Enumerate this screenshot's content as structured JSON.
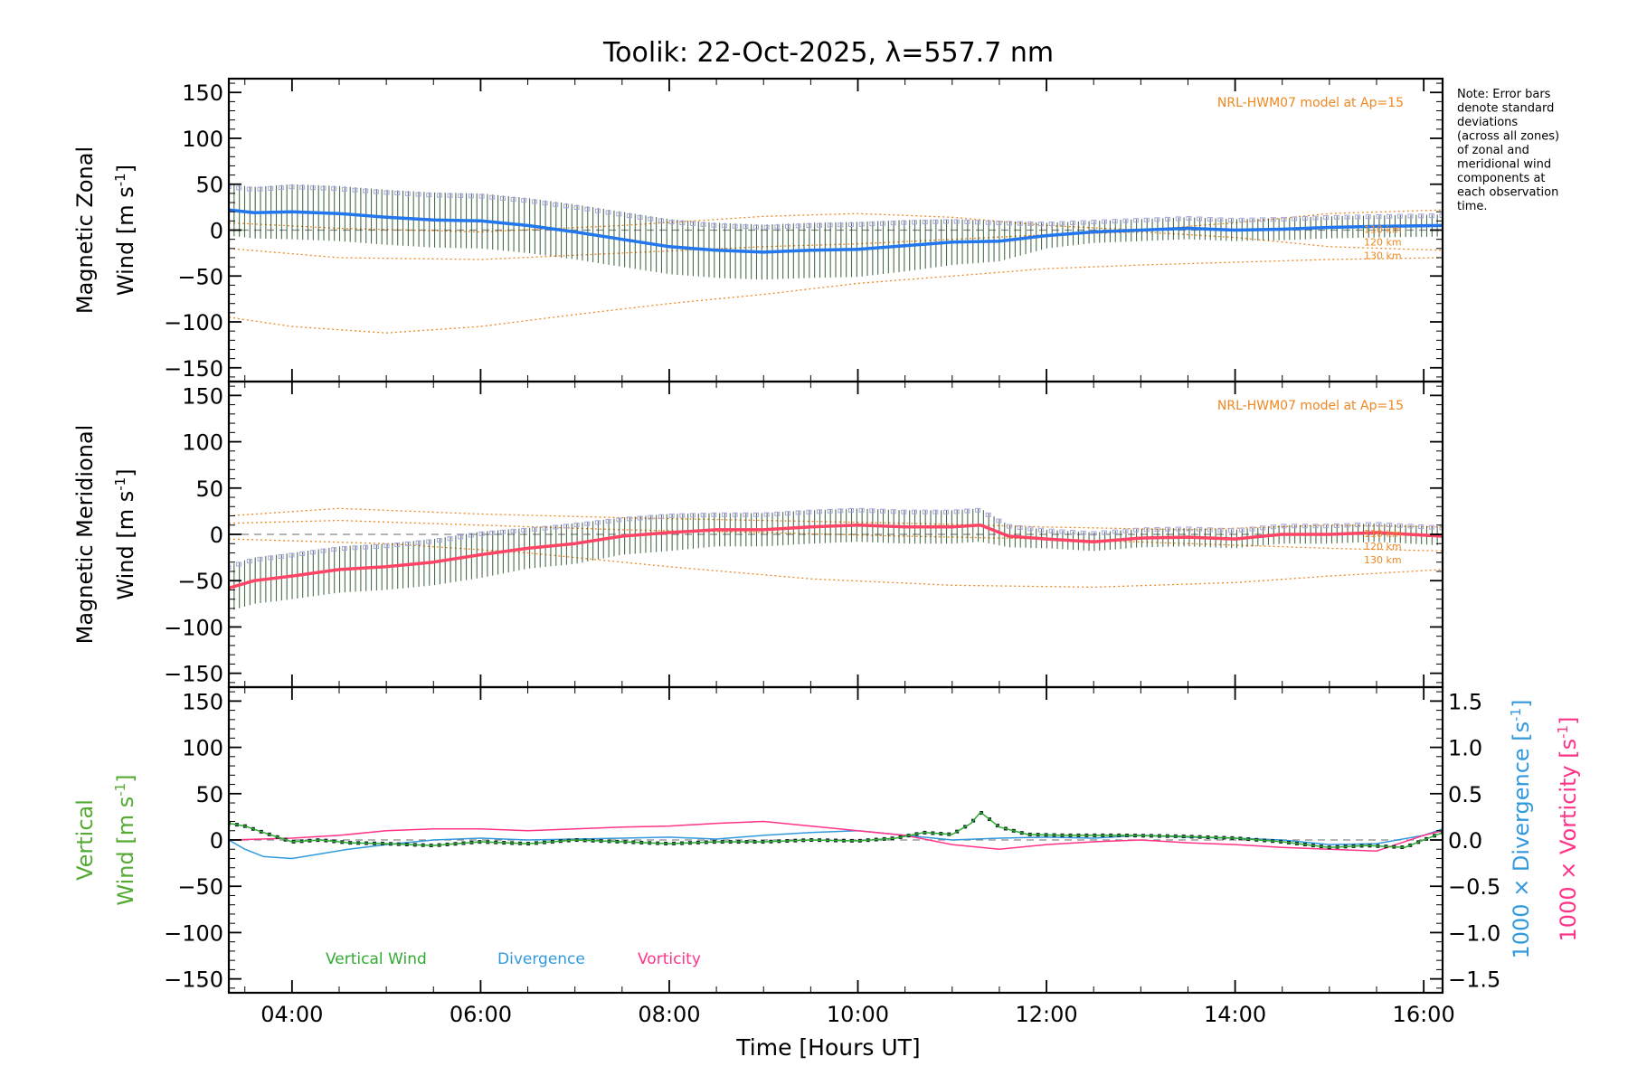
{
  "chart_data": {
    "type": "line",
    "title": "Toolik: 22-Oct-2025, λ=557.7 nm",
    "xlabel": "Time [Hours UT]",
    "xlim": [
      3.33,
      16.2
    ],
    "x_ticks": [
      {
        "value": 4,
        "label": "04:00"
      },
      {
        "value": 6,
        "label": "06:00"
      },
      {
        "value": 8,
        "label": "08:00"
      },
      {
        "value": 10,
        "label": "10:00"
      },
      {
        "value": 12,
        "label": "12:00"
      },
      {
        "value": 14,
        "label": "14:00"
      },
      {
        "value": 16,
        "label": "16:00"
      }
    ],
    "y_ticks": [
      {
        "value": 150,
        "label": "150"
      },
      {
        "value": 100,
        "label": "100"
      },
      {
        "value": 50,
        "label": "50"
      },
      {
        "value": 0,
        "label": "0"
      },
      {
        "value": -50,
        "label": "−50"
      },
      {
        "value": -100,
        "label": "−100"
      },
      {
        "value": -150,
        "label": "−150"
      }
    ],
    "right_y_ticks": [
      {
        "value": 1.5,
        "label": "1.5"
      },
      {
        "value": 1.0,
        "label": "1.0"
      },
      {
        "value": 0.5,
        "label": "0.5"
      },
      {
        "value": 0.0,
        "label": "0.0"
      },
      {
        "value": -0.5,
        "label": "−0.5"
      },
      {
        "value": -1.0,
        "label": "−1.0"
      },
      {
        "value": -1.5,
        "label": "−1.5"
      }
    ],
    "note_lines": [
      "Note: Error bars",
      "denote standard",
      "deviations",
      "(across all zones)",
      "of zonal and",
      "meridional wind",
      "components at",
      "each observation",
      "time."
    ],
    "panels": [
      {
        "id": "zonal",
        "ylabel_line1": "Magnetic Zonal",
        "ylabel_line2": "Wind [m s",
        "ylabel_sup": "-1",
        "ylabel_close": "]",
        "ylim": [
          -165,
          165
        ],
        "model_label": "NRL-HWM07 model at Ap=15",
        "alt_labels": [
          "110 km",
          "120 km",
          "130 km"
        ],
        "series": [
          {
            "name": "Magnetic Zonal Wind",
            "color": "#2277ee",
            "error_color": "#1a4a1a",
            "x": [
              3.33,
              3.6,
              4.0,
              4.5,
              5.0,
              5.5,
              6.0,
              6.5,
              7.0,
              7.5,
              8.0,
              8.5,
              9.0,
              9.5,
              10.0,
              10.5,
              11.0,
              11.5,
              12.0,
              12.5,
              13.0,
              13.5,
              14.0,
              14.5,
              15.0,
              15.5,
              16.2
            ],
            "y": [
              22,
              19,
              20,
              18,
              14,
              11,
              10,
              5,
              -2,
              -10,
              -18,
              -22,
              -24,
              -22,
              -21,
              -17,
              -13,
              -12,
              -6,
              -2,
              0,
              2,
              0,
              1,
              3,
              4,
              5
            ],
            "err": [
              28,
              28,
              30,
              30,
              30,
              30,
              30,
              30,
              30,
              30,
              30,
              30,
              30,
              30,
              30,
              28,
              25,
              22,
              14,
              12,
              12,
              12,
              12,
              12,
              12,
              12,
              12
            ]
          },
          {
            "name": "model 110 km",
            "color": "#ee8822",
            "x": [
              3.33,
              4.5,
              6.0,
              7.5,
              9.0,
              10.0,
              11.0,
              12.0,
              13.0,
              14.0,
              15.0,
              16.2
            ],
            "y": [
              8,
              2,
              -2,
              5,
              15,
              18,
              14,
              5,
              0,
              8,
              18,
              22
            ]
          },
          {
            "name": "model 120 km",
            "color": "#ee8822",
            "x": [
              3.33,
              4.5,
              6.0,
              7.5,
              9.0,
              10.0,
              11.0,
              12.0,
              13.0,
              14.0,
              15.0,
              16.2
            ],
            "y": [
              -20,
              -30,
              -32,
              -25,
              -18,
              -15,
              -10,
              -5,
              -2,
              -8,
              -18,
              -22
            ]
          },
          {
            "name": "model 130 km",
            "color": "#ee8822",
            "x": [
              3.33,
              4.0,
              5.0,
              6.0,
              7.0,
              8.0,
              9.0,
              10.0,
              11.0,
              12.0,
              13.0,
              14.0,
              15.0,
              16.2
            ],
            "y": [
              -95,
              -105,
              -112,
              -105,
              -92,
              -80,
              -70,
              -58,
              -50,
              -42,
              -38,
              -35,
              -32,
              -30
            ]
          }
        ]
      },
      {
        "id": "meridional",
        "ylabel_line1": "Magnetic Meridional",
        "ylabel_line2": "Wind [m s",
        "ylabel_sup": "-1",
        "ylabel_close": "]",
        "ylim": [
          -165,
          165
        ],
        "model_label": "NRL-HWM07 model at Ap=15",
        "alt_labels": [
          "110 km",
          "120 km",
          "130 km"
        ],
        "series": [
          {
            "name": "Magnetic Meridional Wind",
            "color": "#ff4466",
            "error_color": "#1a4a1a",
            "x": [
              3.33,
              3.6,
              4.0,
              4.5,
              5.0,
              5.5,
              6.0,
              6.5,
              7.0,
              7.5,
              8.0,
              8.5,
              9.0,
              9.5,
              10.0,
              10.5,
              11.0,
              11.3,
              11.6,
              12.0,
              12.5,
              13.0,
              13.5,
              14.0,
              14.5,
              15.0,
              15.5,
              16.2
            ],
            "y": [
              -58,
              -50,
              -45,
              -38,
              -35,
              -30,
              -22,
              -15,
              -10,
              -2,
              2,
              5,
              5,
              8,
              10,
              8,
              8,
              10,
              -2,
              -5,
              -8,
              -4,
              -3,
              -5,
              0,
              0,
              2,
              -2
            ],
            "err": [
              25,
              25,
              25,
              25,
              25,
              25,
              25,
              22,
              22,
              20,
              20,
              18,
              18,
              18,
              18,
              18,
              18,
              18,
              12,
              10,
              10,
              10,
              10,
              10,
              10,
              10,
              10,
              10
            ]
          },
          {
            "name": "model 110 km",
            "color": "#ee8822",
            "x": [
              3.33,
              4.5,
              6.0,
              7.5,
              9.0,
              10.5,
              12.0,
              13.5,
              15.0,
              16.2
            ],
            "y": [
              20,
              28,
              22,
              18,
              15,
              12,
              8,
              5,
              10,
              8
            ]
          },
          {
            "name": "model 120 km",
            "color": "#ee8822",
            "x": [
              3.33,
              4.5,
              6.0,
              7.5,
              9.0,
              10.5,
              12.0,
              13.5,
              15.0,
              16.2
            ],
            "y": [
              12,
              15,
              10,
              5,
              2,
              -2,
              -5,
              -10,
              -15,
              -18
            ]
          },
          {
            "name": "model 130 km",
            "color": "#ee8822",
            "x": [
              3.33,
              5.0,
              6.5,
              8.0,
              9.5,
              11.0,
              12.5,
              14.0,
              15.0,
              16.2
            ],
            "y": [
              -5,
              -10,
              -20,
              -35,
              -48,
              -55,
              -57,
              -52,
              -45,
              -38
            ]
          }
        ]
      },
      {
        "id": "vertical",
        "ylabel_line1": "Vertical",
        "ylabel_line2": "Wind [m s",
        "ylabel_sup": "-1",
        "ylabel_close": "]",
        "ylim": [
          -165,
          165
        ],
        "right_ylim": [
          -1.65,
          1.65
        ],
        "right_label_div": "1000 × Divergence [s",
        "right_label_vort": "1000 × Vorticity [s",
        "right_label_sup": "-1",
        "right_label_close": "]",
        "legend": [
          {
            "label": "Vertical Wind",
            "color": "#33aa33"
          },
          {
            "label": "Divergence",
            "color": "#3399dd"
          },
          {
            "label": "Vorticity",
            "color": "#ff3388"
          }
        ],
        "series": [
          {
            "name": "Vertical Wind",
            "color": "#33aa33",
            "axis": "left",
            "x": [
              3.33,
              3.5,
              3.7,
              4.0,
              4.3,
              4.6,
              5.0,
              5.5,
              6.0,
              6.5,
              7.0,
              7.5,
              8.0,
              8.5,
              9.0,
              9.5,
              10.0,
              10.4,
              10.7,
              11.0,
              11.2,
              11.3,
              11.5,
              11.8,
              12.2,
              12.8,
              13.4,
              14.0,
              14.5,
              15.0,
              15.4,
              15.8,
              16.2
            ],
            "y": [
              18,
              15,
              8,
              -2,
              0,
              -3,
              -4,
              -6,
              -2,
              -4,
              0,
              -2,
              -4,
              -2,
              -2,
              0,
              -1,
              2,
              8,
              6,
              18,
              30,
              14,
              6,
              5,
              5,
              4,
              2,
              -2,
              -8,
              -6,
              -8,
              8
            ],
            "err": [
              10,
              10,
              10,
              10,
              10,
              10,
              10,
              10,
              10,
              10,
              10,
              10,
              10,
              10,
              10,
              10,
              10,
              10,
              10,
              10,
              10,
              10,
              10,
              10,
              10,
              10,
              10,
              10,
              10,
              10,
              10,
              10,
              10
            ]
          },
          {
            "name": "Divergence",
            "color": "#3399dd",
            "axis": "right",
            "x": [
              3.33,
              3.5,
              3.7,
              4.0,
              4.3,
              4.6,
              5.0,
              5.5,
              6.0,
              6.5,
              7.0,
              7.5,
              8.0,
              8.5,
              9.0,
              9.5,
              10.0,
              10.5,
              11.0,
              11.5,
              12.0,
              12.5,
              13.0,
              13.5,
              14.0,
              14.5,
              15.0,
              15.5,
              16.0,
              16.2
            ],
            "y": [
              0.0,
              -0.1,
              -0.18,
              -0.2,
              -0.15,
              -0.1,
              -0.05,
              0.0,
              0.02,
              0.0,
              0.01,
              0.02,
              0.03,
              0.01,
              0.05,
              0.08,
              0.1,
              0.05,
              0.0,
              0.02,
              0.03,
              0.02,
              0.05,
              0.03,
              0.02,
              0.0,
              -0.05,
              -0.04,
              0.05,
              0.12
            ]
          },
          {
            "name": "Vorticity",
            "color": "#ff3388",
            "axis": "right",
            "x": [
              3.33,
              4.0,
              4.5,
              5.0,
              5.5,
              6.0,
              6.5,
              7.0,
              7.5,
              8.0,
              8.5,
              9.0,
              9.5,
              10.0,
              10.5,
              11.0,
              11.5,
              12.0,
              12.5,
              13.0,
              13.5,
              14.0,
              14.5,
              15.0,
              15.5,
              16.0,
              16.2
            ],
            "y": [
              0.0,
              0.02,
              0.05,
              0.1,
              0.12,
              0.12,
              0.1,
              0.12,
              0.14,
              0.15,
              0.18,
              0.2,
              0.15,
              0.1,
              0.05,
              -0.05,
              -0.1,
              -0.05,
              -0.02,
              0.0,
              -0.03,
              -0.05,
              -0.08,
              -0.1,
              -0.12,
              0.05,
              0.1
            ]
          }
        ]
      }
    ]
  }
}
